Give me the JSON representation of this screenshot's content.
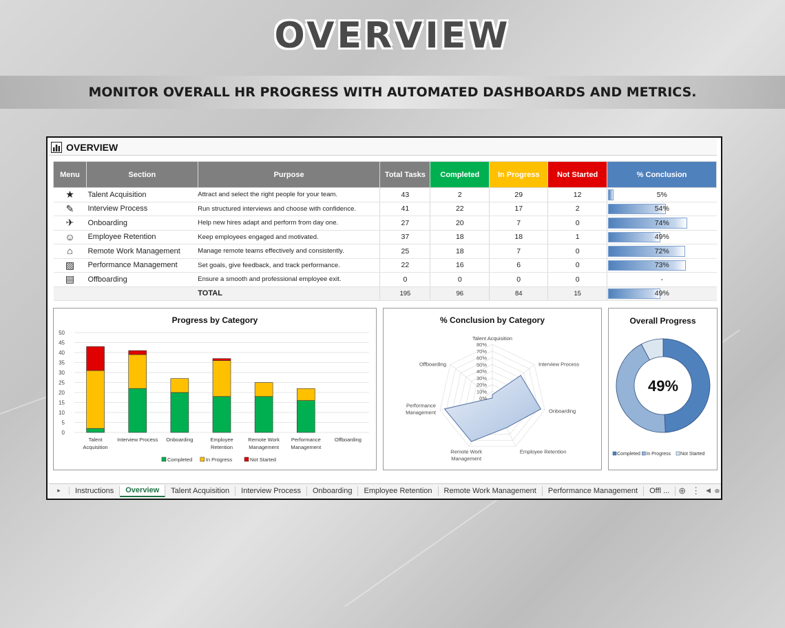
{
  "hero": {
    "title": "OVERVIEW",
    "subtitle": "MONITOR OVERALL HR PROGRESS WITH AUTOMATED DASHBOARDS AND METRICS."
  },
  "sheet": {
    "header_label": "OVERVIEW",
    "columns": [
      "Menu",
      "Section",
      "Purpose",
      "Total Tasks",
      "Completed",
      "In Progress",
      "Not Started",
      "% Conclusion"
    ],
    "rows": [
      {
        "icon": "star-icon",
        "section": "Talent Acquisition",
        "purpose": "Attract and select the right people for your team.",
        "total": "43",
        "completed": "2",
        "in_progress": "29",
        "not_started": "12",
        "conclusion": "5%",
        "conclusion_fraction": 0.05
      },
      {
        "icon": "pen-icon",
        "section": "Interview Process",
        "purpose": "Run structured interviews and choose with confidence.",
        "total": "41",
        "completed": "22",
        "in_progress": "17",
        "not_started": "2",
        "conclusion": "54%",
        "conclusion_fraction": 0.54
      },
      {
        "icon": "rocket-icon",
        "section": "Onboarding",
        "purpose": "Help new hires adapt and perform from day one.",
        "total": "27",
        "completed": "20",
        "in_progress": "7",
        "not_started": "0",
        "conclusion": "74%",
        "conclusion_fraction": 0.74
      },
      {
        "icon": "person-icon",
        "section": "Employee Retention",
        "purpose": "Keep employees engaged and motivated.",
        "total": "37",
        "completed": "18",
        "in_progress": "18",
        "not_started": "1",
        "conclusion": "49%",
        "conclusion_fraction": 0.49
      },
      {
        "icon": "home-office-icon",
        "section": "Remote Work Management",
        "purpose": "Manage remote teams effectively and consistently.",
        "total": "25",
        "completed": "18",
        "in_progress": "7",
        "not_started": "0",
        "conclusion": "72%",
        "conclusion_fraction": 0.72
      },
      {
        "icon": "chart-board-icon",
        "section": "Performance Management",
        "purpose": "Set goals, give feedback, and track performance.",
        "total": "22",
        "completed": "16",
        "in_progress": "6",
        "not_started": "0",
        "conclusion": "73%",
        "conclusion_fraction": 0.73
      },
      {
        "icon": "briefcase-icon",
        "section": "Offboarding",
        "purpose": "Ensure a smooth and professional employee exit.",
        "total": "0",
        "completed": "0",
        "in_progress": "0",
        "not_started": "0",
        "conclusion": "-",
        "conclusion_fraction": 0
      }
    ],
    "total_row": {
      "label": "TOTAL",
      "total": "195",
      "completed": "96",
      "in_progress": "84",
      "not_started": "15",
      "conclusion": "49%",
      "conclusion_fraction": 0.49
    },
    "tabs": [
      "Instructions",
      "Overview",
      "Talent Acquisition",
      "Interview Process",
      "Onboarding",
      "Employee Retention",
      "Remote Work Management",
      "Performance Management",
      "Offl ..."
    ],
    "active_tab": "Overview"
  },
  "colors": {
    "completed": "#00b050",
    "in_progress": "#ffc000",
    "not_started": "#e00000",
    "conclusion": "#4f81bd",
    "donut_completed": "#4f81bd",
    "donut_in_progress": "#95b3d7",
    "donut_not_started": "#dce6f1"
  },
  "chart_data": [
    {
      "type": "bar",
      "stacked": true,
      "title": "Progress by Category",
      "categories": [
        "Talent Acquisition",
        "Interview Process",
        "Onboarding",
        "Employee Retention",
        "Remote Work Management",
        "Performance Management",
        "Offboarding"
      ],
      "category_labels": [
        [
          "Talent",
          "Acquisition"
        ],
        [
          "Interview Process"
        ],
        [
          "Onboarding"
        ],
        [
          "Employee",
          "Retention"
        ],
        [
          "Remote Work",
          "Management"
        ],
        [
          "Performance",
          "Management"
        ],
        [
          "Offboarding"
        ]
      ],
      "series": [
        {
          "name": "Completed",
          "values": [
            2,
            22,
            20,
            18,
            18,
            16,
            0
          ]
        },
        {
          "name": "In Progress",
          "values": [
            29,
            17,
            7,
            18,
            7,
            6,
            0
          ]
        },
        {
          "name": "Not Started",
          "values": [
            12,
            2,
            0,
            1,
            0,
            0,
            0
          ]
        }
      ],
      "ylim": [
        0,
        50
      ],
      "yticks": [
        0,
        5,
        10,
        15,
        20,
        25,
        30,
        35,
        40,
        45,
        50
      ],
      "legend": "bottom"
    },
    {
      "type": "radar",
      "title": "% Conclusion by Category",
      "axes": [
        "Talent Acquisition",
        "Interview Process",
        "Onboarding",
        "Employee Retention",
        "Remote Work Management",
        "Performance Management",
        "Offboarding"
      ],
      "axis_labels": [
        [
          "Talent Acquisition"
        ],
        [
          "Interview Process"
        ],
        [
          "Onboarding"
        ],
        [
          "Employee Retention"
        ],
        [
          "Remote Work",
          "Management"
        ],
        [
          "Performance",
          "Management"
        ],
        [
          "Offboarding"
        ]
      ],
      "values": [
        0.05,
        0.54,
        0.74,
        0.49,
        0.72,
        0.73,
        0
      ],
      "rticks": [
        "0%",
        "10%",
        "20%",
        "30%",
        "40%",
        "50%",
        "60%",
        "70%",
        "80%"
      ],
      "rmax": 0.8
    },
    {
      "type": "pie",
      "donut": true,
      "title": "Overall Progress",
      "center_label": "49%",
      "slices": [
        {
          "name": "Completed",
          "value": 96
        },
        {
          "name": "In Progress",
          "value": 84
        },
        {
          "name": "Not Started",
          "value": 15
        }
      ],
      "legend": "bottom"
    }
  ]
}
